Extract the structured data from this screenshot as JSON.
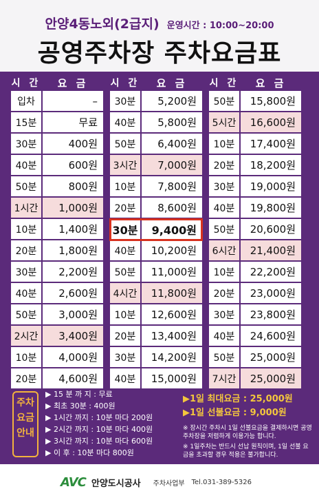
{
  "header": {
    "place": "안양4동노외(2급지)",
    "hours": "운영시간 : 10:00~20:00",
    "title": "공영주차장 주차요금표"
  },
  "table": {
    "head_time": "시 간",
    "head_fee": "요 금",
    "columns": [
      [
        {
          "time": "입차",
          "fee": "–"
        },
        {
          "time": "15분",
          "fee": "무료"
        },
        {
          "time": "30분",
          "fee": "400원"
        },
        {
          "time": "40분",
          "fee": "600원"
        },
        {
          "time": "50분",
          "fee": "800원"
        },
        {
          "time": "1시간",
          "fee": "1,000원",
          "hl": true
        },
        {
          "time": "10분",
          "fee": "1,400원"
        },
        {
          "time": "20분",
          "fee": "1,800원"
        },
        {
          "time": "30분",
          "fee": "2,200원"
        },
        {
          "time": "40분",
          "fee": "2,600원"
        },
        {
          "time": "50분",
          "fee": "3,000원"
        },
        {
          "time": "2시간",
          "fee": "3,400원",
          "hl": true
        },
        {
          "time": "10분",
          "fee": "4,000원"
        },
        {
          "time": "20분",
          "fee": "4,600원"
        }
      ],
      [
        {
          "time": "30분",
          "fee": "5,200원"
        },
        {
          "time": "40분",
          "fee": "5,800원"
        },
        {
          "time": "50분",
          "fee": "6,400원"
        },
        {
          "time": "3시간",
          "fee": "7,000원",
          "hl": true
        },
        {
          "time": "10분",
          "fee": "7,800원"
        },
        {
          "time": "20분",
          "fee": "8,600원"
        },
        {
          "time": "30분",
          "fee": "9,400원",
          "selected": true
        },
        {
          "time": "40분",
          "fee": "10,200원"
        },
        {
          "time": "50분",
          "fee": "11,000원"
        },
        {
          "time": "4시간",
          "fee": "11,800원",
          "hl": true
        },
        {
          "time": "10분",
          "fee": "12,600원"
        },
        {
          "time": "20분",
          "fee": "13,400원"
        },
        {
          "time": "30분",
          "fee": "14,200원"
        },
        {
          "time": "40분",
          "fee": "15,000원"
        }
      ],
      [
        {
          "time": "50분",
          "fee": "15,800원"
        },
        {
          "time": "5시간",
          "fee": "16,600원",
          "hl": true
        },
        {
          "time": "10분",
          "fee": "17,400원"
        },
        {
          "time": "20분",
          "fee": "18,200원"
        },
        {
          "time": "30분",
          "fee": "19,000원"
        },
        {
          "time": "40분",
          "fee": "19,800원"
        },
        {
          "time": "50분",
          "fee": "20,600원"
        },
        {
          "time": "6시간",
          "fee": "21,400원",
          "hl": true
        },
        {
          "time": "10분",
          "fee": "22,200원"
        },
        {
          "time": "20분",
          "fee": "23,000원"
        },
        {
          "time": "30분",
          "fee": "23,800원"
        },
        {
          "time": "40분",
          "fee": "24,600원"
        },
        {
          "time": "50분",
          "fee": "25,000원"
        },
        {
          "time": "7시간",
          "fee": "25,000원",
          "hl": true
        }
      ]
    ]
  },
  "notice": {
    "badge": [
      "주차",
      "요금",
      "안내"
    ],
    "rules": [
      "▶ 15 분 까 지 : 무료",
      "▶ 최초 30분 : 400원",
      "▶ 1시간 까지 : 10분 마다 200원",
      "▶ 2시간 까지 : 10분 마다 400원",
      "▶ 3시간 까지 : 10분 마다 600원",
      "▶ 이        후 : 10분 마다 800원"
    ],
    "max_fee": "▶1일 최대요금 : 25,000원",
    "prepaid_fee": "▶1일 선불요금 :   9,000원",
    "notes": [
      "※ 장시간 주차시 1일 선불요금을 결제하시면 공영주차장을 저렴하게 이용가능 합니다.",
      "※ 1일주차는 반드시 선납 원칙이며, 1일 선불 요금을 초과할 경우 적용은 불가합니다."
    ]
  },
  "footer": {
    "logo": "AVC",
    "org": "안양도시공사",
    "office": "주차사업부",
    "tel": "Tel.031-389-5326"
  },
  "colors": {
    "purple": "#5b2a7a",
    "highlight": "#f6dcdc",
    "accent_yellow": "#f3c63d",
    "selected_border": "#d8321f"
  }
}
